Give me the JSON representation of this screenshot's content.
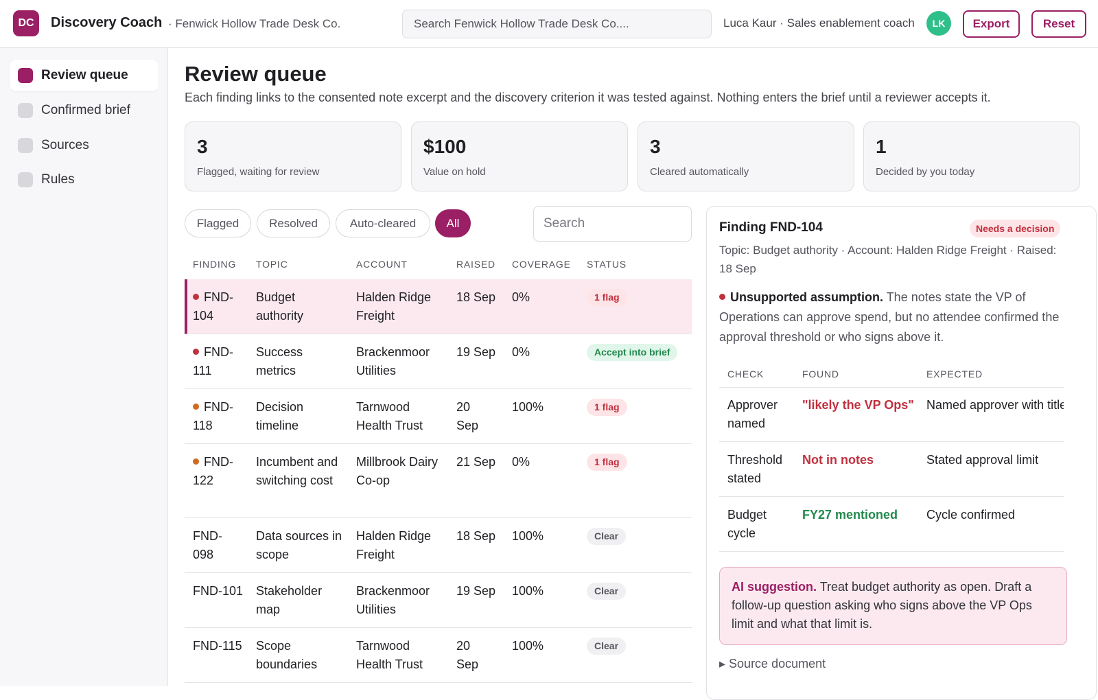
{
  "header": {
    "logo": "DC",
    "app_title": "Discovery Coach",
    "org": "· Fenwick Hollow Trade Desk Co.",
    "search_placeholder": "Search Fenwick Hollow Trade Desk Co....",
    "user": "Luca Kaur · Sales enablement coach",
    "avatar_initials": "LK",
    "export_label": "Export",
    "reset_label": "Reset"
  },
  "sidebar": {
    "items": [
      {
        "label": "Review queue"
      },
      {
        "label": "Confirmed brief"
      },
      {
        "label": "Sources"
      },
      {
        "label": "Rules"
      }
    ]
  },
  "main": {
    "title": "Review queue",
    "description": "Each finding links to the consented note excerpt and the discovery criterion it was tested against. Nothing enters the brief until a reviewer accepts it.",
    "stats": [
      {
        "value": "3",
        "label": "Flagged, waiting for review"
      },
      {
        "value": "$100",
        "label": "Value on hold"
      },
      {
        "value": "3",
        "label": "Cleared automatically"
      },
      {
        "value": "1",
        "label": "Decided by you today"
      }
    ],
    "filters": [
      "Flagged",
      "Resolved",
      "Auto-cleared",
      "All"
    ],
    "search_placeholder": "Search"
  },
  "table": {
    "columns": [
      "FINDING",
      "TOPIC",
      "ACCOUNT",
      "RAISED",
      "COVERAGE",
      "STATUS"
    ],
    "rows": [
      {
        "finding": "FND-104",
        "topic": "Budget authority",
        "account": "Halden Ridge Freight",
        "raised": "18 Sep",
        "coverage": "0%",
        "status": "1 flag"
      },
      {
        "finding": "FND-111",
        "topic": "Success metrics",
        "account": "Brackenmoor Utilities",
        "raised": "19 Sep",
        "coverage": "0%",
        "status": "Accept into brief"
      },
      {
        "finding": "FND-118",
        "topic": "Decision timeline",
        "account": "Tarnwood Health Trust",
        "raised": "20 Sep",
        "coverage": "100%",
        "status": "1 flag"
      },
      {
        "finding": "FND-122",
        "topic": "Incumbent and switching cost",
        "account": "Millbrook Dairy Co-op",
        "raised": "21 Sep",
        "coverage": "0%",
        "status": "1 flag"
      },
      {
        "finding": "FND-098",
        "topic": "Data sources in scope",
        "account": "Halden Ridge Freight",
        "raised": "18 Sep",
        "coverage": "100%",
        "status": "Clear"
      },
      {
        "finding": "FND-101",
        "topic": "Stakeholder map",
        "account": "Brackenmoor Utilities",
        "raised": "19 Sep",
        "coverage": "100%",
        "status": "Clear"
      },
      {
        "finding": "FND-115",
        "topic": "Scope boundaries",
        "account": "Tarnwood Health Trust",
        "raised": "20 Sep",
        "coverage": "100%",
        "status": "Clear"
      }
    ]
  },
  "detail": {
    "title": "Finding FND-104",
    "badge": "Needs a decision",
    "meta": "Topic: Budget authority · Account: Halden Ridge Freight · Raised: 18 Sep",
    "finding_title": "Unsupported assumption.",
    "finding_text": " The notes state the VP of Operations can approve spend, but no attendee confirmed the approval threshold or who signs above it.",
    "columns": [
      "CHECK",
      "FOUND",
      "EXPECTED"
    ],
    "checks": [
      {
        "check": "Approver named",
        "found": "\"likely the VP Ops\"",
        "expected": "Named approver with title"
      },
      {
        "check": "Threshold stated",
        "found": "Not in notes",
        "expected": "Stated approval limit"
      },
      {
        "check": "Budget cycle",
        "found": "FY27 mentioned",
        "expected": "Cycle confirmed"
      }
    ],
    "suggestion_label": "AI suggestion.",
    "suggestion_text": " Treat budget authority as open. Draft a follow-up question asking who signs above the VP Ops limit and what that limit is.",
    "source_toggle": "▸ Source document"
  },
  "colors": {
    "accent": "#9b1f64",
    "flag_red": "#c0303e",
    "success_green": "#23884e",
    "dot_orange": "#d2691e"
  }
}
